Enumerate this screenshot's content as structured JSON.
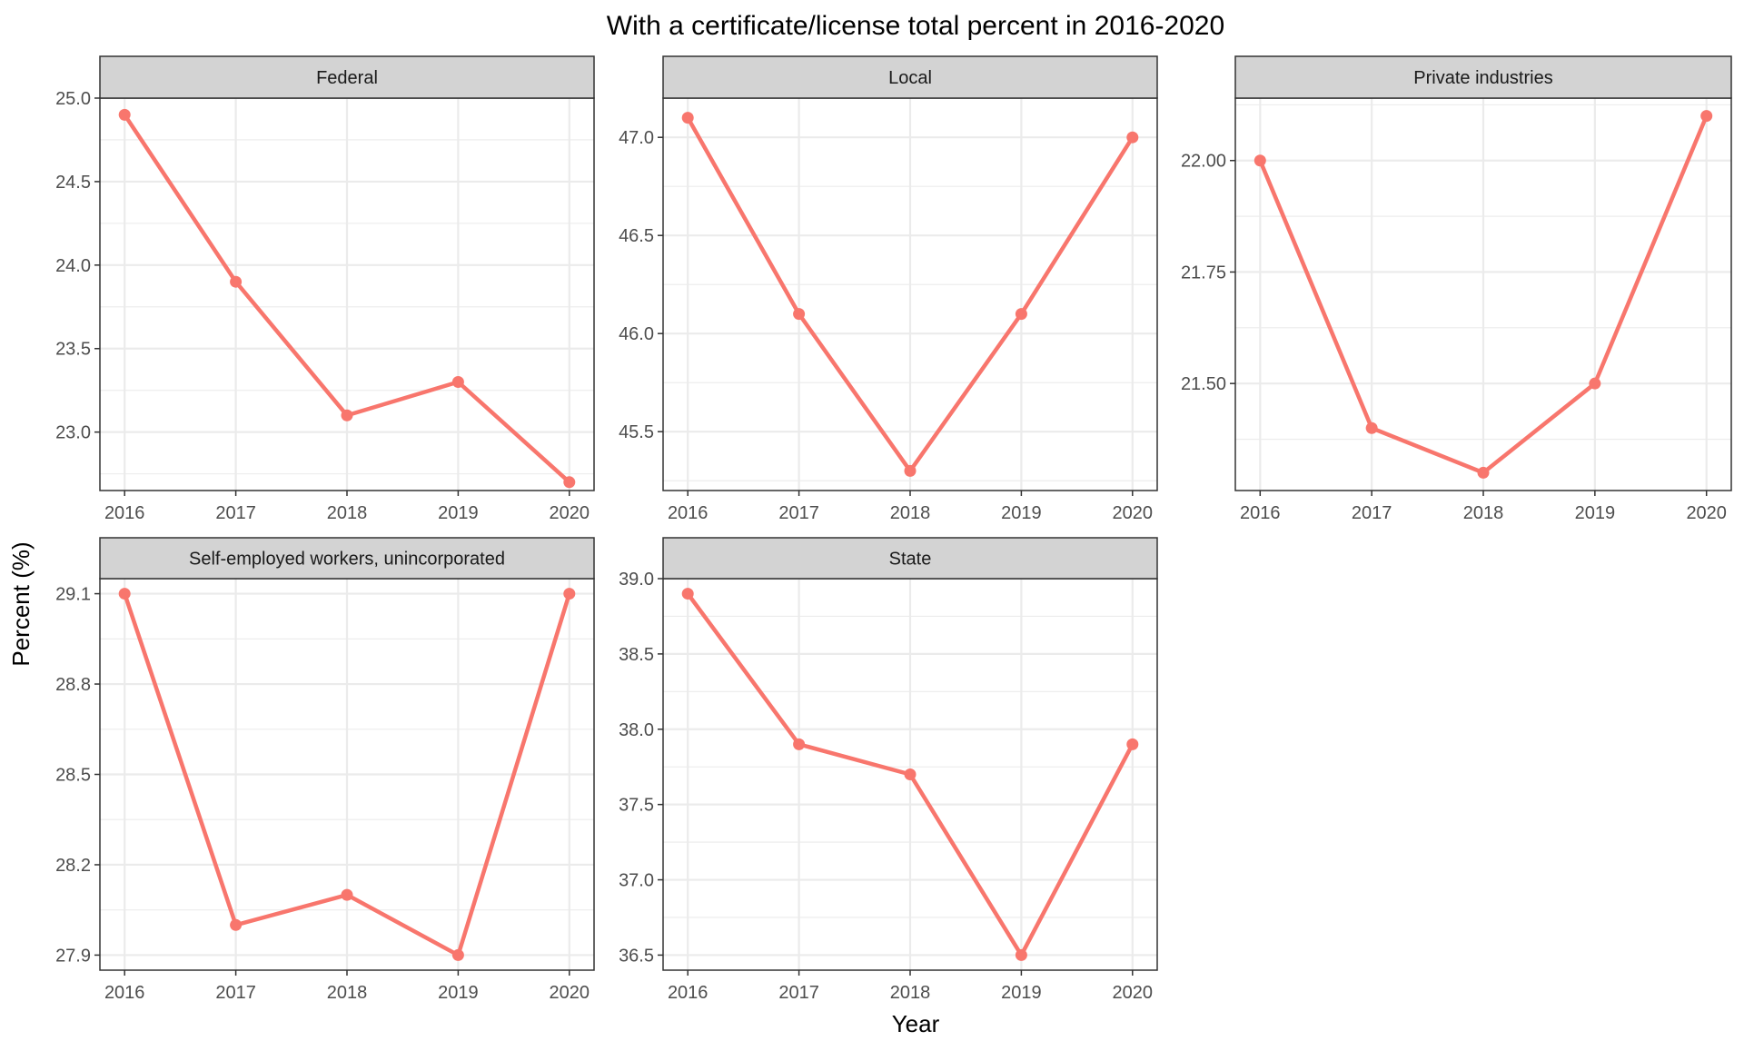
{
  "chart_data": {
    "type": "line",
    "title": "With a certificate/license total percent in 2016-2020",
    "xlabel": "Year",
    "ylabel": "Percent (%)",
    "x": [
      2016,
      2017,
      2018,
      2019,
      2020
    ],
    "line_color": "#F8766D",
    "strip_fill": "#D3D3D3",
    "grid": true,
    "facets": [
      {
        "strip": "Federal",
        "ylim": [
          22.65,
          25.0
        ],
        "yticks": [
          "23.0",
          "23.5",
          "24.0",
          "24.5",
          "25.0"
        ],
        "values": [
          24.9,
          23.9,
          23.1,
          23.3,
          22.7
        ]
      },
      {
        "strip": "Local",
        "ylim": [
          45.2,
          47.2
        ],
        "yticks": [
          "45.5",
          "46.0",
          "46.5",
          "47.0"
        ],
        "values": [
          47.1,
          46.1,
          45.3,
          46.1,
          47.0
        ]
      },
      {
        "strip": "Private industries",
        "ylim": [
          21.26,
          22.14
        ],
        "yticks": [
          "21.50",
          "21.75",
          "22.00"
        ],
        "values": [
          22.0,
          21.4,
          21.3,
          21.5,
          22.1
        ]
      },
      {
        "strip": "Self-employed workers, unincorporated",
        "ylim": [
          27.85,
          29.15
        ],
        "yticks": [
          "27.9",
          "28.2",
          "28.5",
          "28.8",
          "29.1"
        ],
        "values": [
          29.1,
          28.0,
          28.1,
          27.9,
          29.1
        ]
      },
      {
        "strip": "State",
        "ylim": [
          36.4,
          39.0
        ],
        "yticks": [
          "36.5",
          "37.0",
          "37.5",
          "38.0",
          "38.5",
          "39.0"
        ],
        "values": [
          38.9,
          37.9,
          37.7,
          36.5,
          37.9
        ]
      }
    ]
  }
}
